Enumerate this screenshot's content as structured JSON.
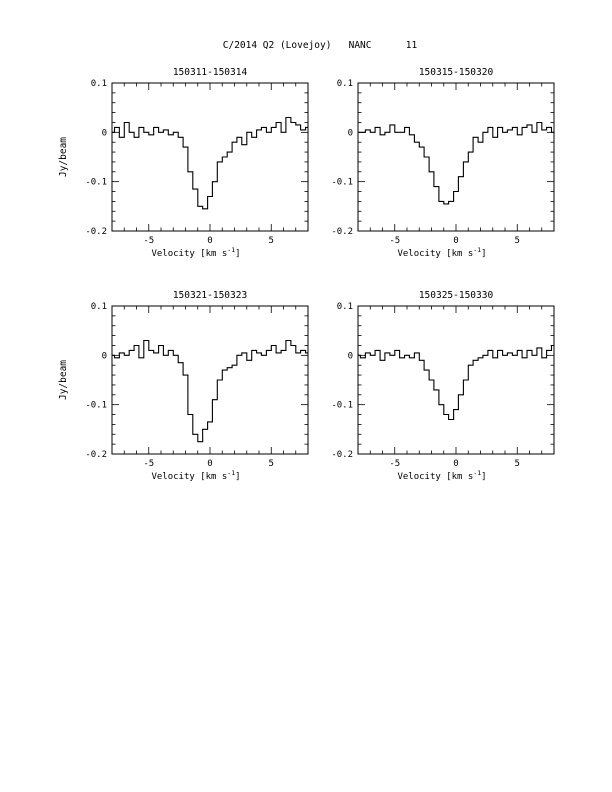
{
  "figure": {
    "title": "C/2014 Q2 (Lovejoy)   NANC      11"
  },
  "chart_data": [
    {
      "type": "line",
      "step": true,
      "title": "150311-150314",
      "xlabel": "Velocity [km s",
      "xlabel_sup": "-1",
      "xlabel_close": "]",
      "ylabel": "Jy/beam",
      "xlim": [
        -8,
        8
      ],
      "ylim": [
        -0.2,
        0.1
      ],
      "xticks": [
        -5,
        0,
        5
      ],
      "xtick_labels": [
        "-5",
        "0",
        "5"
      ],
      "yticks": [
        -0.2,
        -0.1,
        0,
        0.1
      ],
      "ytick_labels": [
        "-0.2",
        "-0.1",
        "0",
        "0.1"
      ],
      "series": [
        {
          "x": [
            -8.0,
            -7.6,
            -7.2,
            -6.8,
            -6.4,
            -6.0,
            -5.6,
            -5.2,
            -4.8,
            -4.4,
            -4.0,
            -3.6,
            -3.2,
            -2.8,
            -2.4,
            -2.0,
            -1.6,
            -1.2,
            -0.8,
            -0.4,
            0.0,
            0.4,
            0.8,
            1.2,
            1.6,
            2.0,
            2.4,
            2.8,
            3.2,
            3.6,
            4.0,
            4.4,
            4.8,
            5.2,
            5.6,
            6.0,
            6.4,
            6.8,
            7.2,
            7.6,
            8.0
          ],
          "y": [
            0.0,
            0.01,
            -0.01,
            0.02,
            0.0,
            -0.01,
            0.01,
            0.0,
            -0.005,
            0.01,
            0.0,
            0.005,
            -0.005,
            0.0,
            -0.01,
            -0.03,
            -0.08,
            -0.115,
            -0.15,
            -0.155,
            -0.13,
            -0.1,
            -0.06,
            -0.05,
            -0.04,
            -0.02,
            -0.01,
            -0.025,
            0.0,
            -0.01,
            0.005,
            0.01,
            0.0,
            0.01,
            0.02,
            0.0,
            0.03,
            0.02,
            0.015,
            0.005,
            0.01
          ]
        }
      ]
    },
    {
      "type": "line",
      "step": true,
      "title": "150315-150320",
      "xlabel": "Velocity [km s",
      "xlabel_sup": "-1",
      "xlabel_close": "]",
      "ylabel": "",
      "xlim": [
        -8,
        8
      ],
      "ylim": [
        -0.2,
        0.1
      ],
      "xticks": [
        -5,
        0,
        5
      ],
      "xtick_labels": [
        "-5",
        "0",
        "5"
      ],
      "yticks": [
        -0.2,
        -0.1,
        0,
        0.1
      ],
      "ytick_labels": [
        "-0.2",
        "-0.1",
        "0",
        "0.1"
      ],
      "series": [
        {
          "x": [
            -8.0,
            -7.6,
            -7.2,
            -6.8,
            -6.4,
            -6.0,
            -5.6,
            -5.2,
            -4.8,
            -4.4,
            -4.0,
            -3.6,
            -3.2,
            -2.8,
            -2.4,
            -2.0,
            -1.6,
            -1.2,
            -0.8,
            -0.4,
            0.0,
            0.4,
            0.8,
            1.2,
            1.6,
            2.0,
            2.4,
            2.8,
            3.2,
            3.6,
            4.0,
            4.4,
            4.8,
            5.2,
            5.6,
            6.0,
            6.4,
            6.8,
            7.2,
            7.6,
            8.0
          ],
          "y": [
            0.0,
            0.0,
            0.005,
            0.0,
            0.01,
            -0.005,
            0.0,
            0.015,
            0.0,
            0.0,
            0.01,
            -0.005,
            -0.02,
            -0.03,
            -0.05,
            -0.08,
            -0.11,
            -0.14,
            -0.145,
            -0.14,
            -0.12,
            -0.09,
            -0.06,
            -0.04,
            -0.01,
            -0.02,
            0.0,
            0.01,
            -0.01,
            0.01,
            0.0,
            0.005,
            0.01,
            -0.005,
            0.01,
            0.015,
            0.0,
            0.02,
            0.005,
            0.01,
            0.0
          ]
        }
      ]
    },
    {
      "type": "line",
      "step": true,
      "title": "150321-150323",
      "xlabel": "Velocity [km s",
      "xlabel_sup": "-1",
      "xlabel_close": "]",
      "ylabel": "Jy/beam",
      "xlim": [
        -8,
        8
      ],
      "ylim": [
        -0.2,
        0.1
      ],
      "xticks": [
        -5,
        0,
        5
      ],
      "xtick_labels": [
        "-5",
        "0",
        "5"
      ],
      "yticks": [
        -0.2,
        -0.1,
        0,
        0.1
      ],
      "ytick_labels": [
        "-0.2",
        "-0.1",
        "0",
        "0.1"
      ],
      "series": [
        {
          "x": [
            -8.0,
            -7.6,
            -7.2,
            -6.8,
            -6.4,
            -6.0,
            -5.6,
            -5.2,
            -4.8,
            -4.4,
            -4.0,
            -3.6,
            -3.2,
            -2.8,
            -2.4,
            -2.0,
            -1.6,
            -1.2,
            -0.8,
            -0.4,
            0.0,
            0.4,
            0.8,
            1.2,
            1.6,
            2.0,
            2.4,
            2.8,
            3.2,
            3.6,
            4.0,
            4.4,
            4.8,
            5.2,
            5.6,
            6.0,
            6.4,
            6.8,
            7.2,
            7.6,
            8.0
          ],
          "y": [
            0.0,
            -0.005,
            0.005,
            0.0,
            0.01,
            0.02,
            -0.005,
            0.03,
            0.01,
            0.005,
            0.02,
            0.0,
            0.01,
            0.0,
            -0.015,
            -0.04,
            -0.12,
            -0.16,
            -0.175,
            -0.15,
            -0.135,
            -0.09,
            -0.05,
            -0.03,
            -0.025,
            -0.02,
            0.0,
            0.005,
            -0.01,
            0.01,
            0.005,
            0.0,
            0.01,
            0.02,
            0.005,
            0.01,
            0.03,
            0.02,
            0.005,
            0.01,
            0.005
          ]
        }
      ]
    },
    {
      "type": "line",
      "step": true,
      "title": "150325-150330",
      "xlabel": "Velocity [km s",
      "xlabel_sup": "-1",
      "xlabel_close": "]",
      "ylabel": "",
      "xlim": [
        -8,
        8
      ],
      "ylim": [
        -0.2,
        0.1
      ],
      "xticks": [
        -5,
        0,
        5
      ],
      "xtick_labels": [
        "-5",
        "0",
        "5"
      ],
      "yticks": [
        -0.2,
        -0.1,
        0,
        0.1
      ],
      "ytick_labels": [
        "-0.2",
        "-0.1",
        "0",
        "0.1"
      ],
      "series": [
        {
          "x": [
            -8.0,
            -7.6,
            -7.2,
            -6.8,
            -6.4,
            -6.0,
            -5.6,
            -5.2,
            -4.8,
            -4.4,
            -4.0,
            -3.6,
            -3.2,
            -2.8,
            -2.4,
            -2.0,
            -1.6,
            -1.2,
            -0.8,
            -0.4,
            0.0,
            0.4,
            0.8,
            1.2,
            1.6,
            2.0,
            2.4,
            2.8,
            3.2,
            3.6,
            4.0,
            4.4,
            4.8,
            5.2,
            5.6,
            6.0,
            6.4,
            6.8,
            7.2,
            7.6,
            8.0
          ],
          "y": [
            0.0,
            -0.005,
            0.005,
            0.0,
            0.01,
            -0.01,
            0.005,
            0.0,
            0.01,
            -0.005,
            0.0,
            -0.005,
            0.005,
            -0.01,
            -0.03,
            -0.05,
            -0.07,
            -0.1,
            -0.12,
            -0.13,
            -0.11,
            -0.08,
            -0.05,
            -0.02,
            -0.01,
            -0.005,
            0.0,
            0.01,
            -0.005,
            0.01,
            0.0,
            0.005,
            0.0,
            0.01,
            -0.005,
            0.01,
            0.0,
            0.015,
            -0.005,
            0.01,
            0.02
          ]
        }
      ]
    }
  ]
}
